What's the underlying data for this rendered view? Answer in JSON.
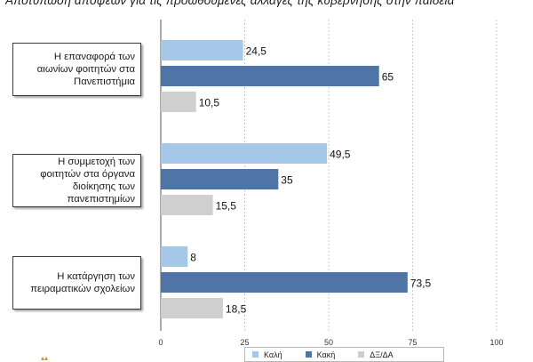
{
  "title": "Αποτύπωση απόψεων για τις προωθούμενες αλλαγές της κυβέρνησης στην παιδεία",
  "categories": [
    "Η επαναφορά των αιωνίων φοιτητών στα Πανεπιστήμια",
    "Η συμμετοχή των φοιτητών στα όργανα διοίκησης των πανεπιστημίων",
    "Η κατάργηση των πειραματικών σχολείων"
  ],
  "legend": {
    "good": "Καλή",
    "bad": "Κακή",
    "dkna": "ΔΞ/ΔΑ"
  },
  "colors": {
    "good": "#a6c8e8",
    "bad": "#4f74a6",
    "dkna": "#cfcfcf"
  },
  "chart_data": {
    "type": "bar",
    "orientation": "horizontal",
    "title": "Αποτύπωση απόψεων για τις προωθούμενες αλλαγές της κυβέρνησης στην παιδεία",
    "categories": [
      "Η επαναφορά των αιωνίων φοιτητών στα Πανεπιστήμια",
      "Η συμμετοχή των φοιτητών στα όργανα διοίκησης των πανεπιστημίων",
      "Η κατάργηση των πειραματικών σχολείων"
    ],
    "series": [
      {
        "name": "Καλή",
        "values": [
          24.5,
          49.5,
          8
        ]
      },
      {
        "name": "Κακή",
        "values": [
          65,
          35,
          73.5
        ]
      },
      {
        "name": "ΔΞ/ΔΑ",
        "values": [
          10.5,
          15.5,
          18.5
        ]
      }
    ],
    "data_labels": [
      [
        "24,5",
        "65",
        "10,5"
      ],
      [
        "49,5",
        "35",
        "15,5"
      ],
      [
        "8",
        "73,5",
        "18,5"
      ]
    ],
    "xlim": [
      0,
      100
    ],
    "xticks": [
      0,
      25,
      50,
      75,
      100
    ],
    "grid": true,
    "legend_position": "bottom"
  }
}
